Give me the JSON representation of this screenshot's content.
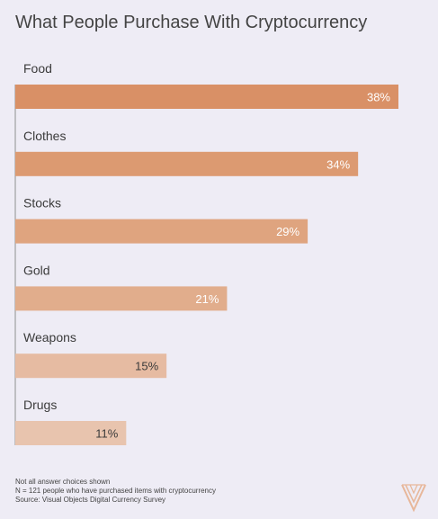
{
  "chart_data": {
    "type": "bar",
    "orientation": "horizontal",
    "title": "What People Purchase With Cryptocurrency",
    "categories": [
      "Food",
      "Clothes",
      "Stocks",
      "Gold",
      "Weapons",
      "Drugs"
    ],
    "values": [
      38,
      34,
      29,
      21,
      15,
      11
    ],
    "value_labels": [
      "38%",
      "34%",
      "29%",
      "21%",
      "15%",
      "11%"
    ],
    "unit": "%",
    "bar_colors": [
      "#d99066",
      "#dc9a71",
      "#dfa47f",
      "#e1ad8c",
      "#e6bba2",
      "#e8c4ae"
    ],
    "label_colors": [
      "#ffffff",
      "#ffffff",
      "#ffffff",
      "#ffffff",
      "#3b3b3b",
      "#3b3b3b"
    ],
    "xlim": [
      0,
      38
    ],
    "grid": false,
    "legend": "none"
  },
  "footnotes": {
    "line1": "Not all answer choices shown",
    "line2": "N = 121 people who have purchased items with cryptocurrency",
    "line3": "Source: Visual Objects Digital Currency Survey"
  },
  "colors": {
    "background": "#eeecf5",
    "axis": "#8f8f8f",
    "logo": "#e7b79a"
  },
  "icons": {
    "brand_logo": "visual-objects-logo-icon"
  }
}
